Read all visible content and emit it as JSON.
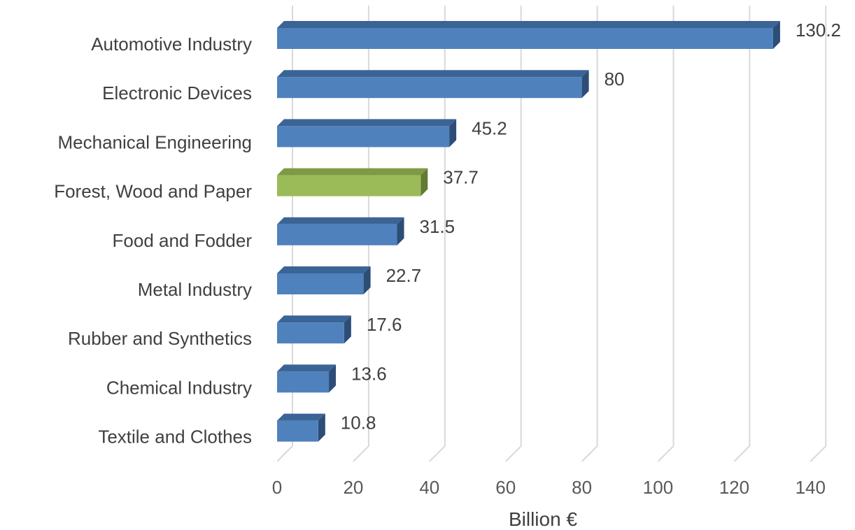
{
  "chart_data": {
    "type": "bar",
    "orientation": "horizontal",
    "style": "3d",
    "categories": [
      "Automotive Industry",
      "Electronic Devices",
      "Mechanical Engineering",
      "Forest, Wood and Paper",
      "Food and Fodder",
      "Metal Industry",
      "Rubber and Synthetics",
      "Chemical Industry",
      "Textile and Clothes"
    ],
    "values": [
      130.2,
      80,
      45.2,
      37.7,
      31.5,
      22.7,
      17.6,
      13.6,
      10.8
    ],
    "value_labels": [
      "130.2",
      "80",
      "45.2",
      "37.7",
      "31.5",
      "22.7",
      "17.6",
      "13.6",
      "10.8"
    ],
    "highlight_category": "Forest, Wood and Paper",
    "xlabel": "Billion €",
    "ylabel": "",
    "xlim": [
      0,
      140
    ],
    "xticks": [
      0,
      20,
      40,
      60,
      80,
      100,
      120,
      140
    ],
    "xtick_labels": [
      "0",
      "20",
      "40",
      "60",
      "80",
      "100",
      "120",
      "140"
    ],
    "grid": "vertical",
    "legend": "none",
    "colors": {
      "bar_front": "#4f81bd",
      "bar_top": "#3b6496",
      "bar_side": "#2d4d76",
      "highlight_front": "#9bbb59",
      "highlight_top": "#7e9a44",
      "highlight_side": "#627a32",
      "gridline": "#d9d9d9",
      "text": "#404040"
    }
  }
}
